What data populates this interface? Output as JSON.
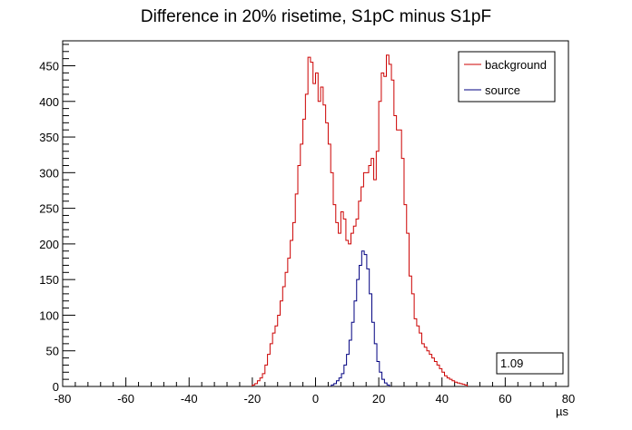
{
  "chart_data": {
    "type": "histogram",
    "title": "Difference in 20% risetime, S1pC minus S1pF",
    "xlabel": "µs",
    "ylabel": "",
    "xlim": [
      -80,
      80
    ],
    "ylim": [
      0,
      485
    ],
    "x_ticks": [
      -80,
      -60,
      -40,
      -20,
      0,
      20,
      40,
      60,
      80
    ],
    "y_ticks": [
      0,
      50,
      100,
      150,
      200,
      250,
      300,
      350,
      400,
      450
    ],
    "x_tick_labels": [
      "-80",
      "-60",
      "-40",
      "-20",
      "0",
      "20",
      "40",
      "60",
      "80"
    ],
    "y_tick_labels": [
      "0",
      "50",
      "100",
      "150",
      "200",
      "250",
      "300",
      "350",
      "400",
      "450"
    ],
    "grid": false,
    "legend_position": "top-right",
    "bin_width": 0.8,
    "series": [
      {
        "name": "background",
        "color": "#cc0000",
        "bin_start": -20,
        "values": [
          2,
          4,
          8,
          12,
          18,
          30,
          45,
          60,
          75,
          85,
          100,
          120,
          140,
          160,
          180,
          205,
          230,
          270,
          310,
          340,
          375,
          410,
          462,
          455,
          425,
          440,
          400,
          420,
          395,
          370,
          340,
          300,
          255,
          230,
          215,
          245,
          235,
          205,
          200,
          215,
          225,
          235,
          260,
          280,
          300,
          300,
          310,
          320,
          290,
          330,
          400,
          440,
          435,
          465,
          452,
          430,
          380,
          360,
          360,
          320,
          255,
          215,
          155,
          130,
          95,
          85,
          75,
          60,
          55,
          50,
          45,
          40,
          35,
          30,
          25,
          20,
          15,
          12,
          10,
          8,
          6,
          5,
          4,
          3,
          2
        ]
      },
      {
        "name": "source",
        "color": "#000080",
        "bin_start": 5,
        "values": [
          2,
          4,
          8,
          12,
          18,
          30,
          45,
          65,
          90,
          120,
          150,
          170,
          190,
          185,
          165,
          130,
          90,
          60,
          35,
          20,
          10,
          5,
          2
        ]
      }
    ],
    "stat_box": "1.09"
  },
  "colors": {
    "background_series": "#cc0000",
    "source_series": "#000080",
    "axis": "#000000",
    "frame": "#000000"
  }
}
